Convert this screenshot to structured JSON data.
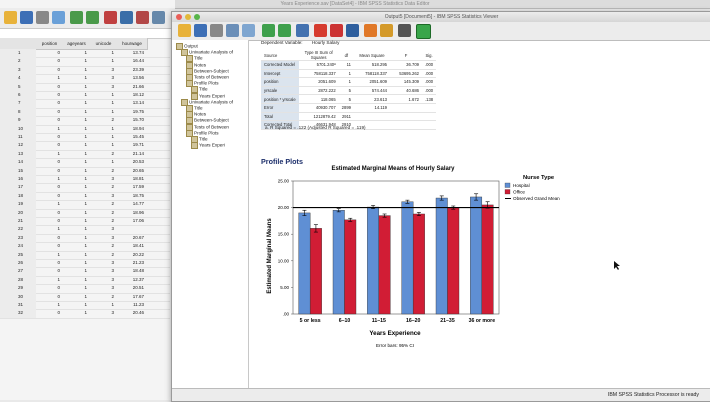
{
  "data_editor": {
    "title": "Years Experience.sav [DataSet4] - IBM SPSS Statistics Data Editor",
    "columns": [
      "position",
      "ageyears",
      "unicode",
      "hourwage"
    ],
    "rows": [
      [
        "1",
        "0",
        "1",
        "1",
        "13.74"
      ],
      [
        "2",
        "0",
        "1",
        "1",
        "16.44"
      ],
      [
        "3",
        "0",
        "1",
        "3",
        "23.39"
      ],
      [
        "4",
        "1",
        "1",
        "3",
        "13.56"
      ],
      [
        "5",
        "0",
        "1",
        "3",
        "21.66"
      ],
      [
        "6",
        "0",
        "1",
        "1",
        "18.12"
      ],
      [
        "7",
        "0",
        "1",
        "1",
        "13.14"
      ],
      [
        "8",
        "0",
        "1",
        "1",
        "19.75"
      ],
      [
        "9",
        "0",
        "1",
        "2",
        "15.70"
      ],
      [
        "10",
        "1",
        "1",
        "1",
        "18.94"
      ],
      [
        "11",
        "0",
        "1",
        "1",
        "15.45"
      ],
      [
        "12",
        "0",
        "1",
        "1",
        "19.71"
      ],
      [
        "13",
        "1",
        "1",
        "2",
        "21.14"
      ],
      [
        "14",
        "0",
        "1",
        "1",
        "20.53"
      ],
      [
        "15",
        "0",
        "1",
        "2",
        "20.65"
      ],
      [
        "16",
        "1",
        "1",
        "3",
        "18.81"
      ],
      [
        "17",
        "0",
        "1",
        "2",
        "17.59"
      ],
      [
        "18",
        "0",
        "1",
        "3",
        "18.75"
      ],
      [
        "19",
        "1",
        "1",
        "2",
        "14.77"
      ],
      [
        "20",
        "0",
        "1",
        "2",
        "18.96"
      ],
      [
        "21",
        "0",
        "1",
        "2",
        "17.06"
      ],
      [
        "22",
        "1",
        "1",
        "3",
        ""
      ],
      [
        "23",
        "0",
        "1",
        "3",
        "20.67"
      ],
      [
        "24",
        "0",
        "1",
        "2",
        "18.41"
      ],
      [
        "25",
        "1",
        "1",
        "2",
        "20.22"
      ],
      [
        "26",
        "0",
        "1",
        "3",
        "21.23"
      ],
      [
        "27",
        "0",
        "1",
        "3",
        "18.48"
      ],
      [
        "28",
        "1",
        "1",
        "3",
        "12.37"
      ],
      [
        "29",
        "0",
        "1",
        "3",
        "20.51"
      ],
      [
        "30",
        "0",
        "1",
        "2",
        "17.67"
      ],
      [
        "31",
        "1",
        "1",
        "1",
        "11.23"
      ],
      [
        "32",
        "0",
        "1",
        "3",
        "20.46"
      ]
    ]
  },
  "viewer": {
    "title": "Output5 [Document5] - IBM SPSS Statistics Viewer",
    "nav": [
      {
        "label": "Output",
        "level": 0
      },
      {
        "label": "Univariate Analysis of",
        "level": 1
      },
      {
        "label": "Title",
        "level": 2
      },
      {
        "label": "Notes",
        "level": 2
      },
      {
        "label": "Between-Subject",
        "level": 2
      },
      {
        "label": "Tests of Between",
        "level": 2
      },
      {
        "label": "Profile Plots",
        "level": 2
      },
      {
        "label": "Title",
        "level": 3
      },
      {
        "label": "Years Experi",
        "level": 3
      },
      {
        "label": "Univariate Analysis of",
        "level": 1
      },
      {
        "label": "Title",
        "level": 2
      },
      {
        "label": "Notes",
        "level": 2
      },
      {
        "label": "Between-Subject",
        "level": 2
      },
      {
        "label": "Tests of Between",
        "level": 2
      },
      {
        "label": "Profile Plots",
        "level": 2
      },
      {
        "label": "Title",
        "level": 3
      },
      {
        "label": "Years Experi",
        "level": 3
      }
    ],
    "anova": {
      "dependent_label": "Dependent Variable:",
      "dependent_value": "Hourly Salary",
      "headers": [
        "Source",
        "Type III Sum of Squares",
        "df",
        "Mean Square",
        "F",
        "Sig."
      ],
      "rows": [
        [
          "Corrected Model",
          "5701.240ª",
          "11",
          "518.295",
          "36.709",
          ".000"
        ],
        [
          "Intercept",
          "758118.337",
          "1",
          "758118.337",
          "53695.262",
          ".000"
        ],
        [
          "position",
          "2051.609",
          "1",
          "2051.609",
          "145.309",
          ".000"
        ],
        [
          "yrscale",
          "2872.222",
          "5",
          "574.444",
          "40.686",
          ".000"
        ],
        [
          "position * yrscale",
          "118.065",
          "5",
          "23.613",
          "1.672",
          ".138"
        ],
        [
          "Error",
          "40930.707",
          "2899",
          "14.119",
          "",
          ""
        ],
        [
          "Total",
          "1212879.42",
          "2911",
          "",
          "",
          ""
        ],
        [
          "Corrected Total",
          "46631.948",
          "2910",
          "",
          "",
          ""
        ]
      ],
      "footnote": "a. R Squared = .122 (Adjusted R Squared = .119)"
    },
    "section_title": "Profile Plots",
    "status": "IBM SPSS Statistics Processor is ready"
  },
  "colors": {
    "hospital": "#5f8fd4",
    "office": "#d11d35",
    "grand": "#000000"
  },
  "chart_data": {
    "type": "bar",
    "title": "Estimated Marginal Means of Hourly Salary",
    "xlabel": "Years Experience",
    "ylabel": "Estimated Marginal Means",
    "categories": [
      "5 or less",
      "6–10",
      "11–15",
      "16–20",
      "21–35",
      "36 or more"
    ],
    "series": [
      {
        "name": "Hospital",
        "values": [
          19.0,
          19.5,
          20.1,
          21.1,
          21.8,
          22.0
        ],
        "errors": [
          0.5,
          0.3,
          0.3,
          0.3,
          0.4,
          0.6
        ]
      },
      {
        "name": "Office",
        "values": [
          16.1,
          17.7,
          18.5,
          18.8,
          20.0,
          20.5
        ],
        "errors": [
          0.7,
          0.3,
          0.3,
          0.3,
          0.3,
          0.6
        ]
      }
    ],
    "grand_mean": 20.0,
    "ylim": [
      0,
      25
    ],
    "yticks": [
      ".00",
      "5.00",
      "10.00",
      "15.00",
      "20.00",
      "25.00"
    ],
    "legend_title": "Nurse Type",
    "legend_grand": "Observed Grand Mean",
    "legend_position": "right",
    "note": "Error bars: 95% CI"
  }
}
